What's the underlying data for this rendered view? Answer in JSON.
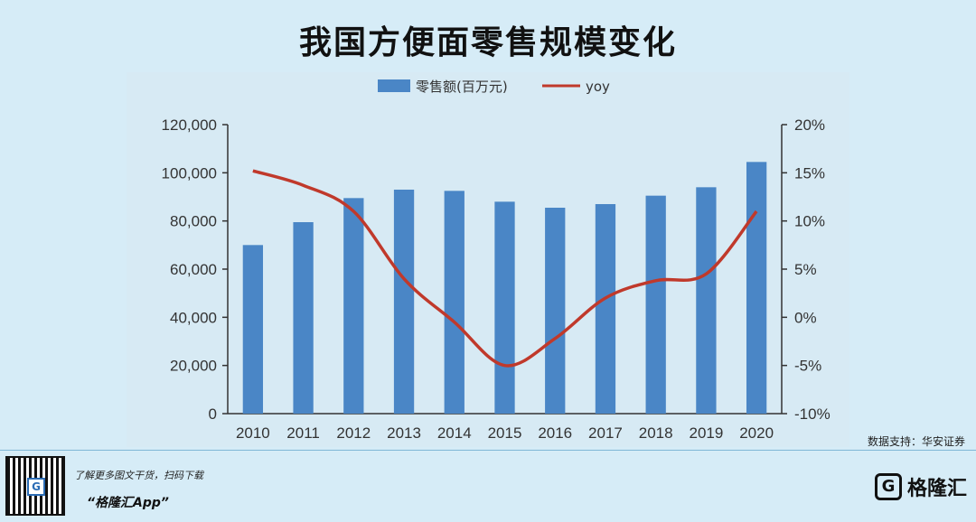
{
  "title": "我国方便面零售规模变化",
  "source": "数据支持：华安证券",
  "footer": {
    "line1": "了解更多图文干货，扫码下载",
    "line2": "“格隆汇App”",
    "logo_text": "格隆汇",
    "logo_mark": "G"
  },
  "colors": {
    "bar": "#4a86c6",
    "line": "#c0392b",
    "background": "#d6ecf7"
  },
  "chart_data": {
    "type": "bar",
    "categories": [
      "2010",
      "2011",
      "2012",
      "2013",
      "2014",
      "2015",
      "2016",
      "2017",
      "2018",
      "2019",
      "2020"
    ],
    "series": [
      {
        "name": "零售额(百万元)",
        "type": "bar",
        "axis": "left",
        "values": [
          70000,
          79500,
          89500,
          93000,
          92500,
          88000,
          85500,
          87000,
          90500,
          94000,
          104500
        ]
      },
      {
        "name": "yoy",
        "type": "line",
        "axis": "right",
        "values": [
          15.2,
          13.7,
          11.0,
          4.0,
          -0.5,
          -5.0,
          -2.2,
          2.0,
          3.8,
          4.5,
          11.0
        ]
      }
    ],
    "ylim_left": [
      0,
      120000
    ],
    "yticks_left": [
      "0",
      "20,000",
      "40,000",
      "60,000",
      "80,000",
      "100,000",
      "120,000"
    ],
    "ylim_right": [
      -10,
      20
    ],
    "yticks_right": [
      "-10%",
      "-5%",
      "0%",
      "5%",
      "10%",
      "15%",
      "20%"
    ],
    "legend_position": "top-center",
    "grid": false
  }
}
